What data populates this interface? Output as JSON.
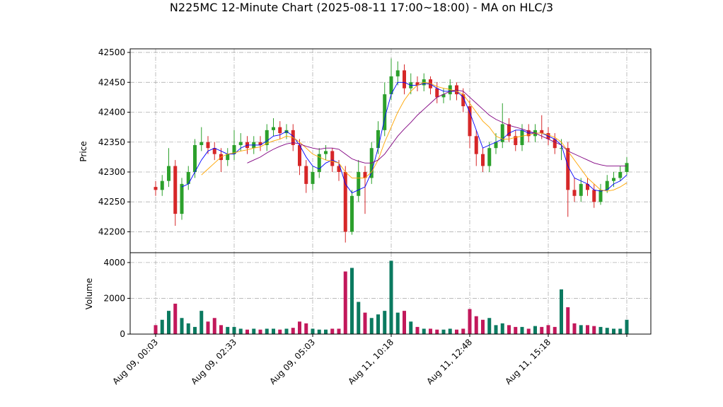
{
  "chart_data": [
    {
      "type": "candlestick",
      "title": "N225MC 12-Minute Chart (2025-08-11 17:00~18:00) - MA on HLC/3",
      "y_label": "Price",
      "categories": [
        "Aug 09, 00:03",
        null,
        null,
        null,
        null,
        null,
        null,
        null,
        null,
        null,
        null,
        null,
        "Aug 09, 02:33",
        null,
        null,
        null,
        null,
        null,
        null,
        null,
        null,
        null,
        null,
        null,
        "Aug 09, 05:03",
        null,
        null,
        null,
        null,
        null,
        null,
        null,
        null,
        null,
        null,
        null,
        "Aug 11, 10:18",
        null,
        null,
        null,
        null,
        null,
        null,
        null,
        null,
        null,
        null,
        null,
        "Aug 11, 12:48",
        null,
        null,
        null,
        null,
        null,
        null,
        null,
        null,
        null,
        null,
        null,
        "Aug 11, 15:18",
        null,
        null,
        null,
        null,
        null,
        null,
        null,
        null,
        null,
        null,
        null,
        null
      ],
      "open": [
        42275,
        42270,
        42285,
        42310,
        42230,
        42280,
        42300,
        42345,
        42350,
        42340,
        42330,
        42320,
        42330,
        42345,
        42350,
        42340,
        42350,
        42345,
        42370,
        42375,
        42365,
        42370,
        42345,
        42310,
        42280,
        42300,
        42330,
        42335,
        42310,
        42300,
        42200,
        42260,
        42300,
        42290,
        42340,
        42370,
        42430,
        42460,
        42470,
        42440,
        42450,
        42445,
        42455,
        42440,
        42425,
        42430,
        42445,
        42430,
        42410,
        42360,
        42330,
        42310,
        42340,
        42350,
        42380,
        42360,
        42345,
        42370,
        42360,
        42370,
        42365,
        42355,
        42340,
        42340,
        42270,
        42260,
        42280,
        42270,
        42250,
        42270,
        42285,
        42290,
        42300
      ],
      "high": [
        42285,
        42295,
        42340,
        42320,
        42290,
        42310,
        42355,
        42375,
        42360,
        42350,
        42340,
        42340,
        42370,
        42365,
        42360,
        42360,
        42360,
        42380,
        42390,
        42385,
        42380,
        42380,
        42355,
        42320,
        42310,
        42340,
        42345,
        42340,
        42320,
        42310,
        42270,
        42320,
        42310,
        42350,
        42385,
        42450,
        42490,
        42485,
        42480,
        42465,
        42460,
        42465,
        42460,
        42450,
        42440,
        42455,
        42450,
        42440,
        42420,
        42370,
        42340,
        42350,
        42365,
        42415,
        42390,
        42370,
        42380,
        42380,
        42380,
        42395,
        42375,
        42365,
        42355,
        42350,
        42290,
        42290,
        42290,
        42280,
        42280,
        42295,
        42300,
        42310,
        42325
      ],
      "low": [
        42260,
        42260,
        42275,
        42210,
        42220,
        42270,
        42290,
        42335,
        42330,
        42320,
        42300,
        42310,
        42320,
        42335,
        42330,
        42330,
        42335,
        42335,
        42360,
        42355,
        42355,
        42335,
        42295,
        42265,
        42270,
        42290,
        42320,
        42300,
        42285,
        42182,
        42195,
        42250,
        42230,
        42280,
        42330,
        42360,
        42420,
        42445,
        42430,
        42430,
        42435,
        42435,
        42430,
        42415,
        42415,
        42420,
        42420,
        42400,
        42340,
        42310,
        42300,
        42300,
        42330,
        42340,
        42350,
        42335,
        42335,
        42350,
        42350,
        42355,
        42345,
        42330,
        42320,
        42225,
        42250,
        42250,
        42260,
        42240,
        42245,
        42265,
        42275,
        42285,
        42295
      ],
      "close": [
        42270,
        42285,
        42310,
        42230,
        42280,
        42300,
        42345,
        42350,
        42340,
        42330,
        42320,
        42330,
        42345,
        42350,
        42340,
        42350,
        42345,
        42370,
        42375,
        42365,
        42370,
        42345,
        42310,
        42280,
        42300,
        42330,
        42335,
        42310,
        42300,
        42200,
        42260,
        42300,
        42290,
        42340,
        42370,
        42430,
        42460,
        42470,
        42440,
        42450,
        42445,
        42455,
        42440,
        42425,
        42430,
        42445,
        42430,
        42410,
        42360,
        42330,
        42310,
        42340,
        42350,
        42380,
        42360,
        42345,
        42370,
        42360,
        42370,
        42365,
        42355,
        42340,
        42340,
        42270,
        42260,
        42280,
        42270,
        42250,
        42270,
        42285,
        42290,
        42300,
        42315
      ],
      "up_color": "#2ca02c",
      "down_color": "#d62728",
      "series": [
        {
          "color": "#0000ff",
          "values": [
            null,
            null,
            null,
            null,
            42275,
            42280,
            42300,
            42320,
            42335,
            42340,
            42335,
            42330,
            42330,
            42340,
            42345,
            42345,
            42345,
            42352,
            42360,
            42362,
            42368,
            42360,
            42345,
            42325,
            42310,
            42305,
            42315,
            42320,
            42315,
            42280,
            42265,
            42270,
            42275,
            42300,
            42340,
            42390,
            42430,
            42450,
            42450,
            42445,
            42445,
            42448,
            42447,
            42440,
            42435,
            42435,
            42435,
            42425,
            42400,
            42370,
            42340,
            42345,
            42350,
            42355,
            42365,
            42370,
            42370,
            42365,
            42365,
            42365,
            42360,
            42355,
            42345,
            42310,
            42290,
            42285,
            42280,
            42270,
            42268,
            42270,
            42280,
            42285,
            42295
          ]
        },
        {
          "color": "#ffa500",
          "values": [
            null,
            null,
            null,
            null,
            null,
            null,
            null,
            42295,
            42305,
            42315,
            42325,
            42330,
            42332,
            42335,
            42337,
            42340,
            42342,
            42348,
            42352,
            42355,
            42360,
            42358,
            42350,
            42340,
            42330,
            42325,
            42320,
            42318,
            42315,
            42300,
            42290,
            42290,
            42290,
            42300,
            42320,
            42350,
            42375,
            42400,
            42420,
            42435,
            42445,
            42450,
            42448,
            42443,
            42440,
            42438,
            42435,
            42430,
            42415,
            42400,
            42385,
            42375,
            42360,
            42355,
            42355,
            42358,
            42360,
            42362,
            42365,
            42365,
            42362,
            42358,
            42350,
            42335,
            42320,
            42305,
            42290,
            42280,
            42270,
            42268,
            42270,
            42275,
            42282
          ]
        },
        {
          "color": "#800080",
          "values": [
            null,
            null,
            null,
            null,
            null,
            null,
            null,
            null,
            null,
            null,
            null,
            null,
            null,
            null,
            42315,
            42320,
            42325,
            42332,
            42338,
            42343,
            42347,
            42349,
            42347,
            42343,
            42340,
            42338,
            42340,
            42340,
            42338,
            42330,
            42322,
            42318,
            42315,
            42315,
            42320,
            42330,
            42345,
            42360,
            42372,
            42383,
            42395,
            42405,
            42415,
            42425,
            42430,
            42435,
            42437,
            42435,
            42425,
            42415,
            42405,
            42395,
            42388,
            42383,
            42378,
            42375,
            42372,
            42368,
            42365,
            42360,
            42355,
            42350,
            42345,
            42335,
            42330,
            42325,
            42320,
            42315,
            42312,
            42310,
            42310,
            42310,
            42310
          ]
        }
      ],
      "ylim": [
        42165,
        42506
      ],
      "yticks": [
        42200,
        42250,
        42300,
        42350,
        42400,
        42450,
        42500
      ],
      "grid": true
    },
    {
      "type": "bar",
      "y_label": "Volume",
      "values": [
        500,
        800,
        1300,
        1700,
        900,
        600,
        400,
        1300,
        700,
        900,
        500,
        400,
        400,
        300,
        250,
        300,
        250,
        300,
        300,
        250,
        300,
        350,
        700,
        600,
        300,
        250,
        250,
        300,
        300,
        3500,
        3700,
        1800,
        1200,
        900,
        1100,
        1300,
        4100,
        1200,
        1300,
        700,
        400,
        300,
        300,
        250,
        250,
        300,
        250,
        300,
        1400,
        1000,
        800,
        900,
        500,
        600,
        500,
        400,
        400,
        300,
        450,
        400,
        500,
        400,
        2500,
        1500,
        600,
        500,
        500,
        450,
        400,
        350,
        300,
        300,
        800
      ],
      "up_color": "#0b7a60",
      "down_color": "#c2185b",
      "ylim": [
        0,
        4550
      ],
      "yticks": [
        0,
        2000,
        4000
      ],
      "grid": true
    }
  ]
}
